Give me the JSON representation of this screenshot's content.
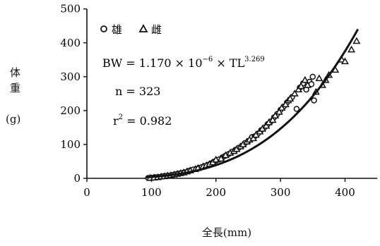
{
  "chart_data": {
    "type": "scatter",
    "title": "",
    "xlabel": "全長(mm)",
    "ylabel": [
      "体",
      "重",
      "(g)"
    ],
    "xlim": [
      0,
      450
    ],
    "ylim": [
      0,
      500
    ],
    "xticks": [
      "0",
      "100",
      "200",
      "300",
      "400"
    ],
    "yticks": [
      "0",
      "100",
      "200",
      "300",
      "400",
      "500"
    ],
    "grid": false,
    "legend_position": "top-left",
    "legend": [
      {
        "marker": "circle",
        "label": "雄"
      },
      {
        "marker": "triangle",
        "label": "雌"
      }
    ],
    "annotations": {
      "equation_lhs": "BW = 1.170 × 10",
      "equation_exp1": "−6",
      "equation_mid": " × TL",
      "equation_exp2": "3.269",
      "n_text": "n = 323",
      "r2_lhs": "r",
      "r2_exp": "2",
      "r2_rhs": " = 0.982"
    },
    "fit_curve": {
      "a": 1.17e-06,
      "b": 3.269,
      "x_range": [
        92,
        420
      ]
    },
    "series": [
      {
        "name": "雄",
        "marker": "circle",
        "points": [
          [
            95,
            1
          ],
          [
            100,
            2
          ],
          [
            105,
            3
          ],
          [
            108,
            3
          ],
          [
            112,
            4
          ],
          [
            118,
            6
          ],
          [
            122,
            7
          ],
          [
            128,
            8
          ],
          [
            132,
            10
          ],
          [
            138,
            12
          ],
          [
            142,
            14
          ],
          [
            148,
            16
          ],
          [
            152,
            18
          ],
          [
            158,
            22
          ],
          [
            162,
            24
          ],
          [
            165,
            26
          ],
          [
            170,
            28
          ],
          [
            175,
            31
          ],
          [
            178,
            33
          ],
          [
            182,
            36
          ],
          [
            188,
            40
          ],
          [
            192,
            44
          ],
          [
            196,
            48
          ],
          [
            200,
            52
          ],
          [
            205,
            56
          ],
          [
            210,
            62
          ],
          [
            214,
            66
          ],
          [
            220,
            72
          ],
          [
            225,
            78
          ],
          [
            230,
            84
          ],
          [
            235,
            90
          ],
          [
            240,
            96
          ],
          [
            245,
            104
          ],
          [
            250,
            110
          ],
          [
            256,
            122
          ],
          [
            260,
            124
          ],
          [
            265,
            132
          ],
          [
            270,
            142
          ],
          [
            275,
            150
          ],
          [
            280,
            160
          ],
          [
            285,
            168
          ],
          [
            290,
            180
          ],
          [
            295,
            190
          ],
          [
            300,
            202
          ],
          [
            305,
            212
          ],
          [
            310,
            224
          ],
          [
            318,
            240
          ],
          [
            325,
            205
          ],
          [
            330,
            268
          ],
          [
            335,
            280
          ],
          [
            340,
            262
          ],
          [
            345,
            285
          ],
          [
            348,
            278
          ],
          [
            350,
            300
          ],
          [
            352,
            230
          ]
        ]
      },
      {
        "name": "雌",
        "marker": "triangle",
        "points": [
          [
            98,
            1
          ],
          [
            104,
            2
          ],
          [
            110,
            3
          ],
          [
            115,
            5
          ],
          [
            120,
            6
          ],
          [
            125,
            8
          ],
          [
            130,
            9
          ],
          [
            135,
            11
          ],
          [
            140,
            13
          ],
          [
            145,
            15
          ],
          [
            150,
            17
          ],
          [
            155,
            20
          ],
          [
            160,
            23
          ],
          [
            168,
            27
          ],
          [
            172,
            30
          ],
          [
            180,
            35
          ],
          [
            185,
            38
          ],
          [
            190,
            42
          ],
          [
            195,
            47
          ],
          [
            200,
            55
          ],
          [
            208,
            58
          ],
          [
            215,
            68
          ],
          [
            222,
            75
          ],
          [
            228,
            80
          ],
          [
            232,
            86
          ],
          [
            238,
            94
          ],
          [
            242,
            100
          ],
          [
            248,
            108
          ],
          [
            252,
            114
          ],
          [
            258,
            118
          ],
          [
            262,
            128
          ],
          [
            268,
            138
          ],
          [
            272,
            146
          ],
          [
            278,
            155
          ],
          [
            282,
            165
          ],
          [
            288,
            172
          ],
          [
            292,
            185
          ],
          [
            298,
            196
          ],
          [
            302,
            208
          ],
          [
            308,
            218
          ],
          [
            312,
            230
          ],
          [
            315,
            235
          ],
          [
            322,
            250
          ],
          [
            328,
            262
          ],
          [
            332,
            272
          ],
          [
            338,
            290
          ],
          [
            342,
            275
          ],
          [
            355,
            255
          ],
          [
            360,
            295
          ],
          [
            365,
            275
          ],
          [
            370,
            290
          ],
          [
            375,
            305
          ],
          [
            385,
            320
          ],
          [
            395,
            350
          ],
          [
            400,
            345
          ],
          [
            410,
            380
          ],
          [
            418,
            405
          ]
        ]
      }
    ]
  }
}
